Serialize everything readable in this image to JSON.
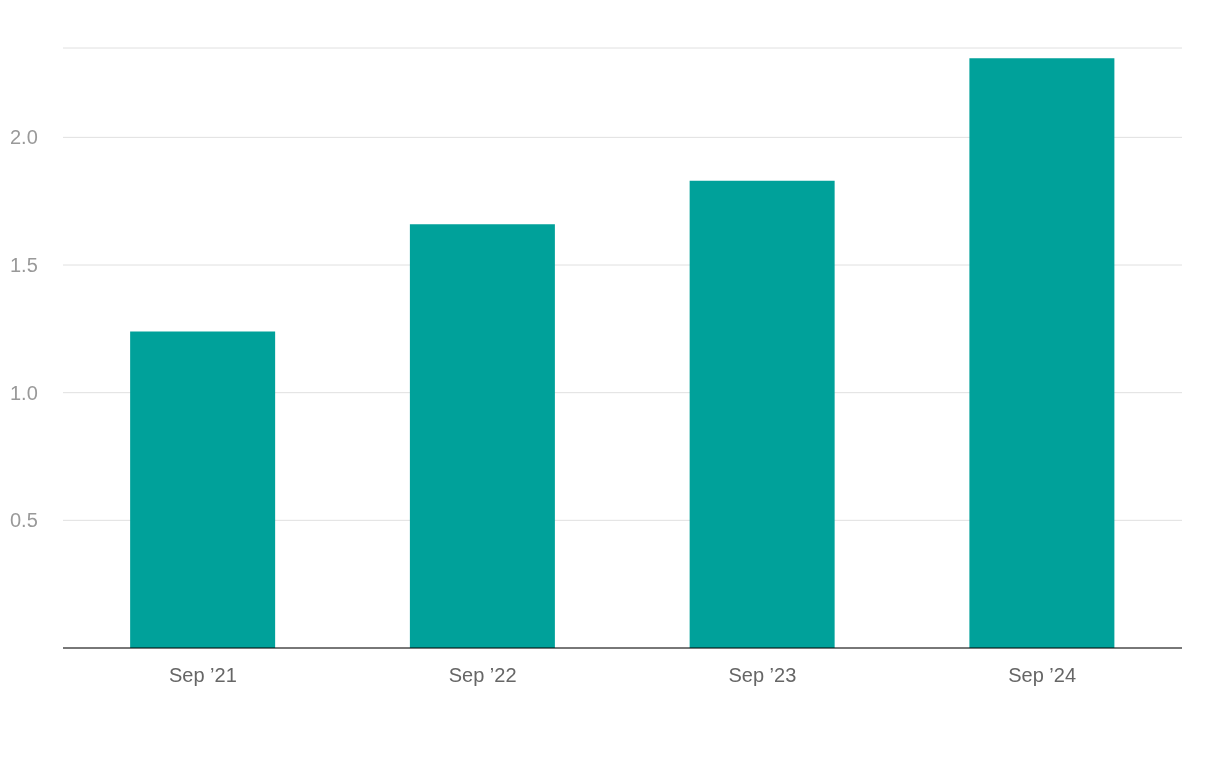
{
  "chart_data": {
    "type": "bar",
    "categories": [
      "Sep ’21",
      "Sep ’22",
      "Sep ’23",
      "Sep ’24"
    ],
    "values": [
      1.24,
      1.66,
      1.83,
      2.31
    ],
    "color": "#00a19a",
    "ylim": [
      0,
      2.35
    ],
    "yticks": [
      {
        "value": 0.5,
        "label": "0.5"
      },
      {
        "value": 1,
        "label": "1.0"
      },
      {
        "value": 1.5,
        "label": "1.5"
      },
      {
        "value": 2,
        "label": "2.0"
      }
    ],
    "grid": "y"
  }
}
